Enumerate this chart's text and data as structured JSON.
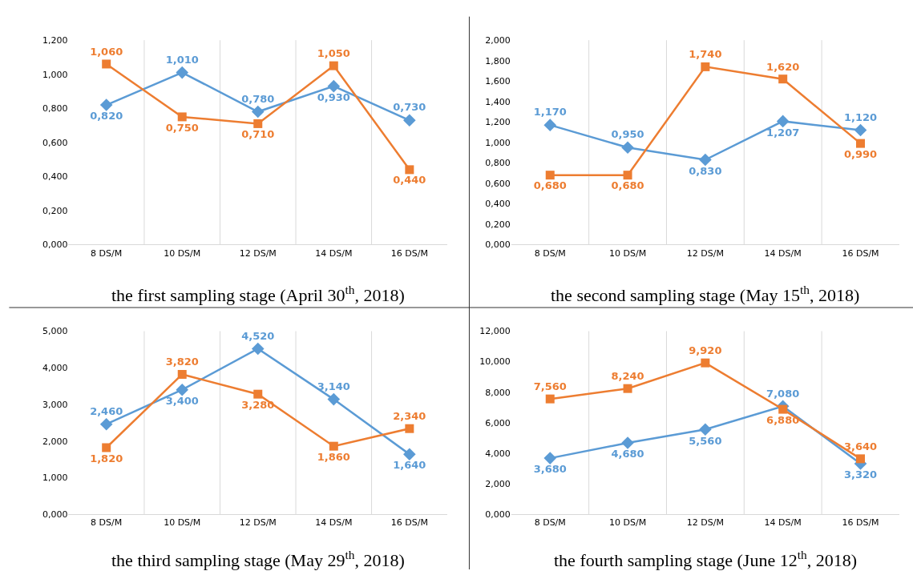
{
  "chart_data": [
    {
      "type": "line",
      "title": "the first sampling stage (April 30$^{th}$, 2018)",
      "categories": [
        "8 DS/M",
        "10 DS/M",
        "12 DS/M",
        "14 DS/M",
        "16 DS/M"
      ],
      "series": [
        {
          "color": "#5b9bd5",
          "marker": "diamond",
          "values": [
            0.82,
            1.01,
            0.78,
            0.93,
            0.73
          ],
          "value_labels": [
            "0,820",
            "1,010",
            "0,780",
            "0,930",
            "0,730"
          ]
        },
        {
          "color": "#ed7d31",
          "marker": "square",
          "values": [
            1.06,
            0.75,
            0.71,
            1.05,
            0.44
          ],
          "value_labels": [
            "1,060",
            "0,750",
            "0,710",
            "1,050",
            "0,440"
          ]
        }
      ],
      "ylim": [
        0,
        1.2
      ],
      "yticks": [
        {
          "value": 0,
          "label": "0,000"
        },
        {
          "value": 0.2,
          "label": "0,200"
        },
        {
          "value": 0.4,
          "label": "0,400"
        },
        {
          "value": 0.6,
          "label": "0,600"
        },
        {
          "value": 0.8,
          "label": "0,800"
        },
        {
          "value": 1.0,
          "label": "1,000"
        },
        {
          "value": 1.2,
          "label": "1,200"
        }
      ],
      "grid": "x"
    },
    {
      "type": "line",
      "title": "the second sampling stage (May 15$^{th}$, 2018)",
      "categories": [
        "8 DS/M",
        "10 DS/M",
        "12 DS/M",
        "14 DS/M",
        "16 DS/M"
      ],
      "series": [
        {
          "color": "#5b9bd5",
          "marker": "diamond",
          "values": [
            1.17,
            0.95,
            0.83,
            1.207,
            1.12
          ],
          "value_labels": [
            "1,170",
            "0,950",
            "0,830",
            "1,207",
            "1,120"
          ]
        },
        {
          "color": "#ed7d31",
          "marker": "square",
          "values": [
            0.68,
            0.68,
            1.74,
            1.62,
            0.99
          ],
          "value_labels": [
            "0,680",
            "0,680",
            "1,740",
            "1,620",
            "0,990"
          ]
        }
      ],
      "ylim": [
        0,
        2.0
      ],
      "yticks": [
        {
          "value": 0,
          "label": "0,000"
        },
        {
          "value": 0.2,
          "label": "0,200"
        },
        {
          "value": 0.4,
          "label": "0,400"
        },
        {
          "value": 0.6,
          "label": "0,600"
        },
        {
          "value": 0.8,
          "label": "0,800"
        },
        {
          "value": 1.0,
          "label": "1,000"
        },
        {
          "value": 1.2,
          "label": "1,200"
        },
        {
          "value": 1.4,
          "label": "1,400"
        },
        {
          "value": 1.6,
          "label": "1,600"
        },
        {
          "value": 1.8,
          "label": "1,800"
        },
        {
          "value": 2.0,
          "label": "2,000"
        }
      ],
      "grid": "x"
    },
    {
      "type": "line",
      "title": "the third sampling stage (May 29$^{th}$, 2018)",
      "categories": [
        "8 DS/M",
        "10 DS/M",
        "12 DS/M",
        "14 DS/M",
        "16 DS/M"
      ],
      "series": [
        {
          "color": "#5b9bd5",
          "marker": "diamond",
          "values": [
            2.46,
            3.4,
            4.52,
            3.14,
            1.64
          ],
          "value_labels": [
            "2,460",
            "3,400",
            "4,520",
            "3,140",
            "1,640"
          ]
        },
        {
          "color": "#ed7d31",
          "marker": "square",
          "values": [
            1.82,
            3.82,
            3.28,
            1.86,
            2.34
          ],
          "value_labels": [
            "1,820",
            "3,820",
            "3,280",
            "1,860",
            "2,340"
          ]
        }
      ],
      "ylim": [
        0,
        5.0
      ],
      "yticks": [
        {
          "value": 0,
          "label": "0,000"
        },
        {
          "value": 1.0,
          "label": "1,000"
        },
        {
          "value": 2.0,
          "label": "2,000"
        },
        {
          "value": 3.0,
          "label": "3,000"
        },
        {
          "value": 4.0,
          "label": "4,000"
        },
        {
          "value": 5.0,
          "label": "5,000"
        }
      ],
      "grid": "x"
    },
    {
      "type": "line",
      "title": "the fourth sampling stage (June 12$^{th}$, 2018)",
      "categories": [
        "8 DS/M",
        "10 DS/M",
        "12 DS/M",
        "14 DS/M",
        "16 DS/M"
      ],
      "series": [
        {
          "color": "#5b9bd5",
          "marker": "diamond",
          "values": [
            3.68,
            4.68,
            5.56,
            7.08,
            3.32
          ],
          "value_labels": [
            "3,680",
            "4,680",
            "5,560",
            "7,080",
            "3,320"
          ]
        },
        {
          "color": "#ed7d31",
          "marker": "square",
          "values": [
            7.56,
            8.24,
            9.92,
            6.88,
            3.64
          ],
          "value_labels": [
            "7,560",
            "8,240",
            "9,920",
            "6,880",
            "3,640"
          ]
        }
      ],
      "ylim": [
        0,
        12.0
      ],
      "yticks": [
        {
          "value": 0,
          "label": "0,000"
        },
        {
          "value": 2.0,
          "label": "2,000"
        },
        {
          "value": 4.0,
          "label": "4,000"
        },
        {
          "value": 6.0,
          "label": "6,000"
        },
        {
          "value": 8.0,
          "label": "8,000"
        },
        {
          "value": 10.0,
          "label": "10,000"
        },
        {
          "value": 12.0,
          "label": "12,000"
        }
      ],
      "grid": "x"
    }
  ]
}
